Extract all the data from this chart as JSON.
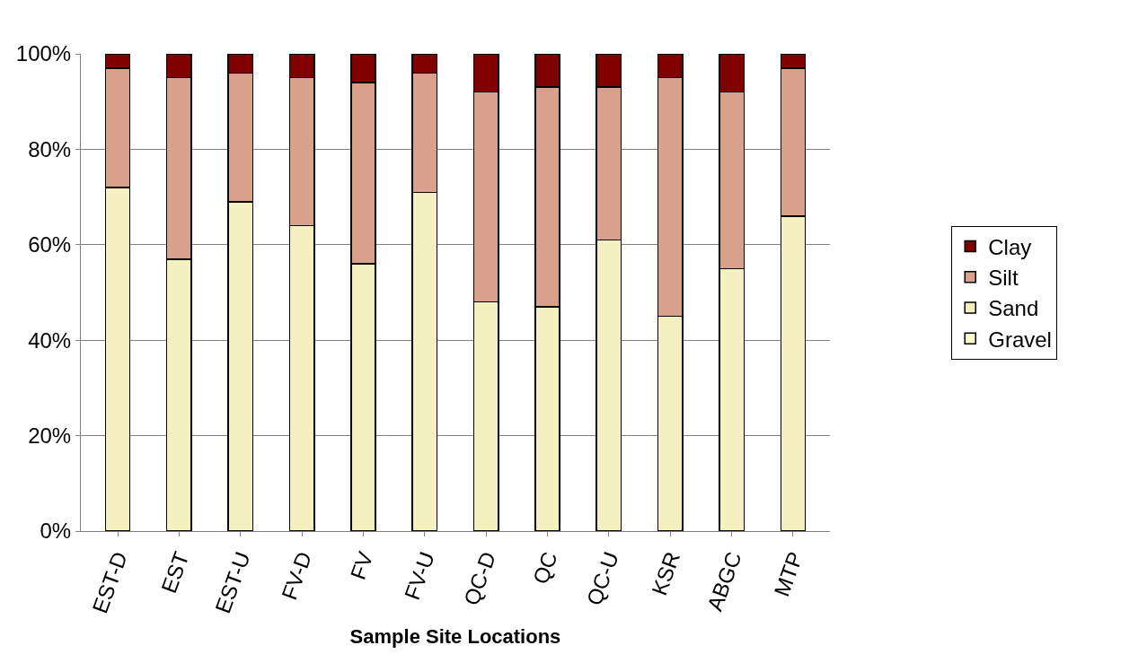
{
  "chart_data": {
    "type": "bar",
    "stacked": true,
    "xlabel": "Sample Site Locations",
    "categories": [
      "EST-D",
      "EST",
      "EST-U",
      "FV-D",
      "FV",
      "FV-U",
      "QC-D",
      "QC",
      "QC-U",
      "KSR",
      "ABGC",
      "MTP"
    ],
    "series": [
      {
        "name": "Gravel",
        "color": "#ffffcc",
        "values": [
          0,
          0,
          0,
          0,
          0,
          0,
          0,
          0,
          0,
          0,
          0,
          0
        ]
      },
      {
        "name": "Sand",
        "color": "#f5f0c0",
        "values": [
          72,
          57,
          69,
          64,
          56,
          71,
          48,
          47,
          61,
          45,
          55,
          66
        ]
      },
      {
        "name": "Silt",
        "color": "#d9a08c",
        "values": [
          25,
          38,
          27,
          31,
          38,
          25,
          44,
          46,
          32,
          50,
          37,
          31
        ]
      },
      {
        "name": "Clay",
        "color": "#800000",
        "values": [
          3,
          5,
          4,
          5,
          6,
          4,
          8,
          7,
          7,
          5,
          8,
          3
        ]
      }
    ],
    "ylim": [
      0,
      100
    ],
    "yticks": [
      {
        "value": 0,
        "label": "0%"
      },
      {
        "value": 20,
        "label": "20%"
      },
      {
        "value": 40,
        "label": "40%"
      },
      {
        "value": 60,
        "label": "60%"
      },
      {
        "value": 80,
        "label": "80%"
      },
      {
        "value": 100,
        "label": "100%"
      }
    ],
    "grid": "y",
    "legend": "right"
  }
}
